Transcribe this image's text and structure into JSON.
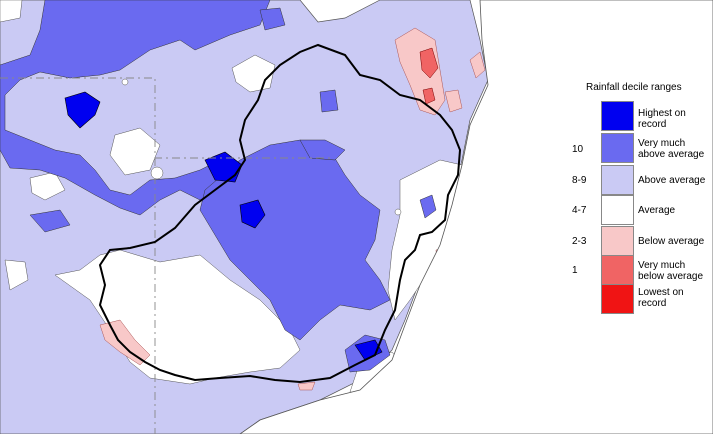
{
  "legend": {
    "title": "Rainfall decile ranges",
    "rows": [
      {
        "range": "",
        "label": "Highest on record",
        "color": "#0000f0"
      },
      {
        "range": "10",
        "label": "Very much above average",
        "color": "#6a6af0"
      },
      {
        "range": "8-9",
        "label": "Above average",
        "color": "#cacaf4"
      },
      {
        "range": "4-7",
        "label": "Average",
        "color": "#ffffff"
      },
      {
        "range": "2-3",
        "label": "Below average",
        "color": "#f8c8c8"
      },
      {
        "range": "1",
        "label": "Very much below average",
        "color": "#f06464"
      },
      {
        "range": "",
        "label": "Lowest on record",
        "color": "#f01414"
      }
    ]
  },
  "map_colors": {
    "above_average": "#cacaf4",
    "very_much_above": "#6a6af0",
    "highest": "#0000f0",
    "average": "#ffffff",
    "below_average": "#f8c8c8",
    "very_much_below": "#f06464",
    "coast": "#555555",
    "basin_border": "#000000",
    "state_border": "#888888"
  }
}
